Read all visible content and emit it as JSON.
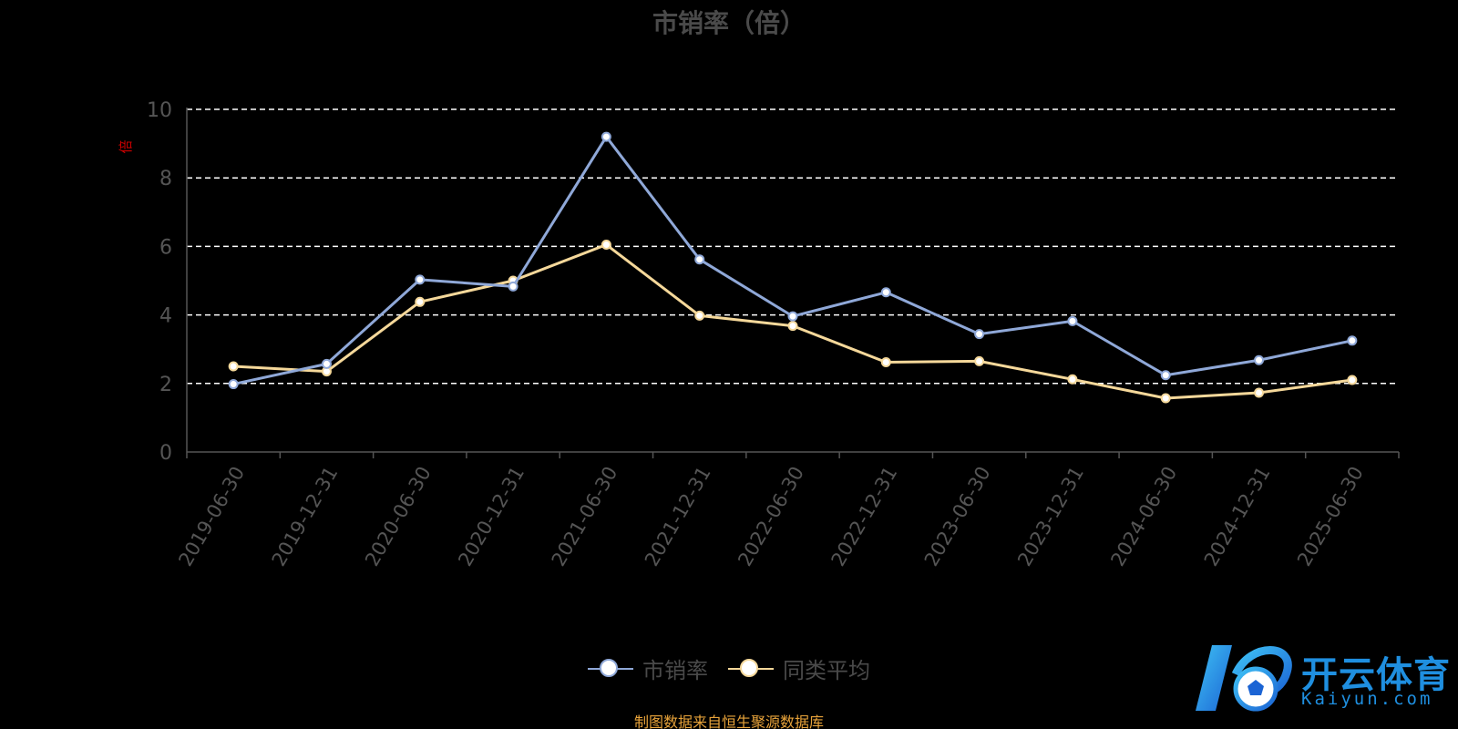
{
  "chart_data": {
    "type": "line",
    "title": "市销率（倍）",
    "unit_label": "倍",
    "xlabel": "",
    "ylabel": "",
    "categories": [
      "2019-06-30",
      "2019-12-31",
      "2020-06-30",
      "2020-12-31",
      "2021-06-30",
      "2021-12-31",
      "2022-06-30",
      "2022-12-31",
      "2023-06-30",
      "2023-12-31",
      "2024-06-30",
      "2024-12-31",
      "2025-06-30"
    ],
    "ylim": [
      0,
      10
    ],
    "yticks": [
      "0",
      "2",
      "4",
      "6",
      "8",
      "10"
    ],
    "grid": "horizontal dashed",
    "legend_position": "bottom-center",
    "series": [
      {
        "name": "市销率",
        "color": "#8fa8d8",
        "values": [
          1.98,
          2.57,
          5.03,
          4.83,
          9.2,
          5.62,
          3.96,
          4.66,
          3.44,
          3.82,
          2.24,
          2.68,
          3.25
        ]
      },
      {
        "name": "同类平均",
        "color": "#f5d89a",
        "values": [
          2.5,
          2.35,
          4.38,
          5.0,
          6.05,
          3.98,
          3.68,
          2.62,
          2.65,
          2.12,
          1.57,
          1.73,
          2.1
        ]
      }
    ]
  },
  "source_note": "制图数据来自恒生聚源数据库",
  "watermark": {
    "cn": "开云体育",
    "en": "Kaiyun.com",
    "color": "#1f8fe0"
  }
}
